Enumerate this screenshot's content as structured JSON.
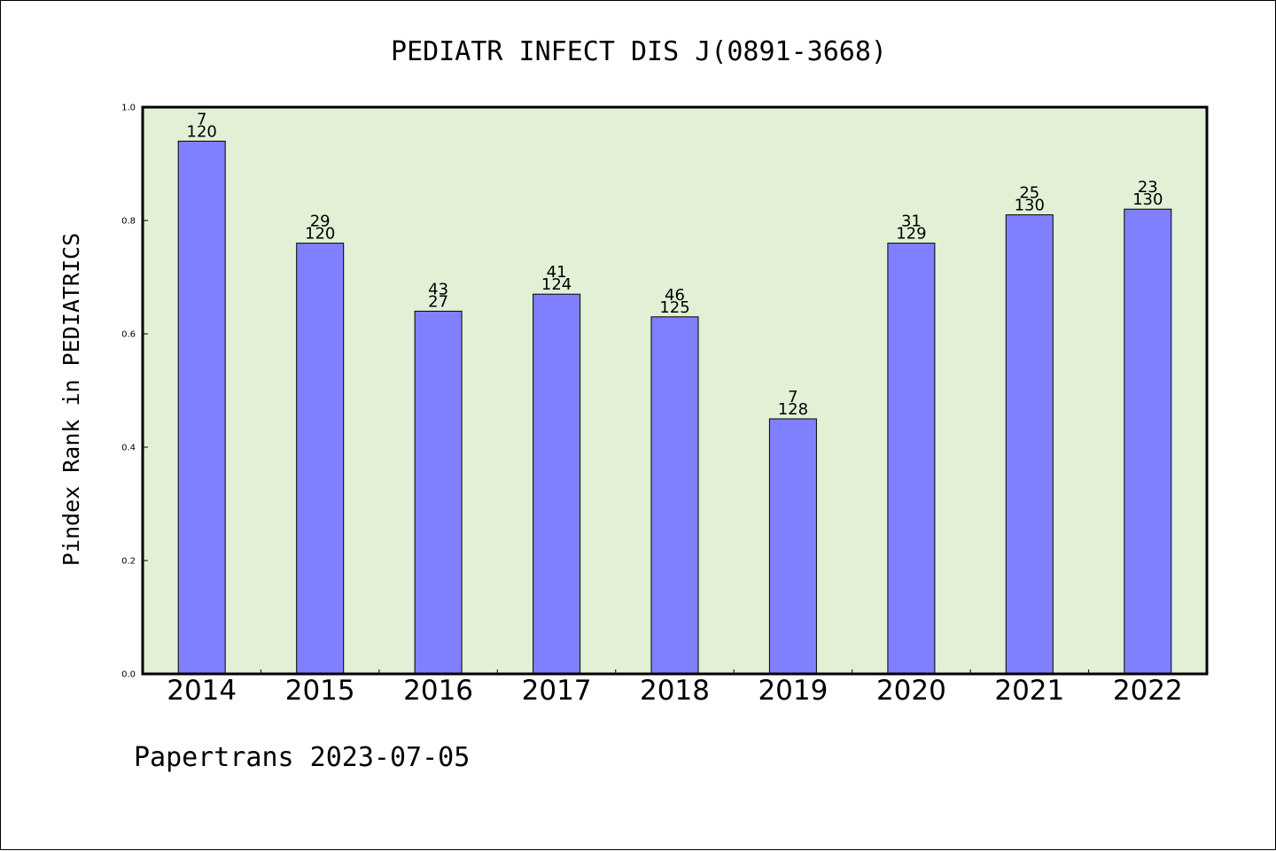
{
  "chart_data": {
    "type": "bar",
    "title": "PEDIATR INFECT DIS J(0891-3668)",
    "xlabel": "",
    "ylabel": "Pindex Rank in PEDIATRICS",
    "categories": [
      "2014",
      "2015",
      "2016",
      "2017",
      "2018",
      "2019",
      "2020",
      "2021",
      "2022"
    ],
    "values": [
      0.94,
      0.76,
      0.64,
      0.67,
      0.63,
      0.45,
      0.76,
      0.81,
      0.82
    ],
    "rank_labels": [
      "7",
      "29",
      "43",
      "41",
      "46",
      "7",
      "31",
      "25",
      "23"
    ],
    "total_labels": [
      "120",
      "120",
      "27",
      "124",
      "125",
      "128",
      "129",
      "130",
      "130"
    ],
    "ylim": [
      0.0,
      1.0
    ],
    "yticks": [
      "0.0",
      "0.2",
      "0.4",
      "0.6",
      "0.8",
      "1.0"
    ],
    "grid": false,
    "legend": "none",
    "colors": {
      "bar_fill": "#8080ff",
      "plot_background": "#e2f0d6",
      "axes": "#000000"
    }
  },
  "footer": {
    "text": "Papertrans 2023-07-05"
  }
}
